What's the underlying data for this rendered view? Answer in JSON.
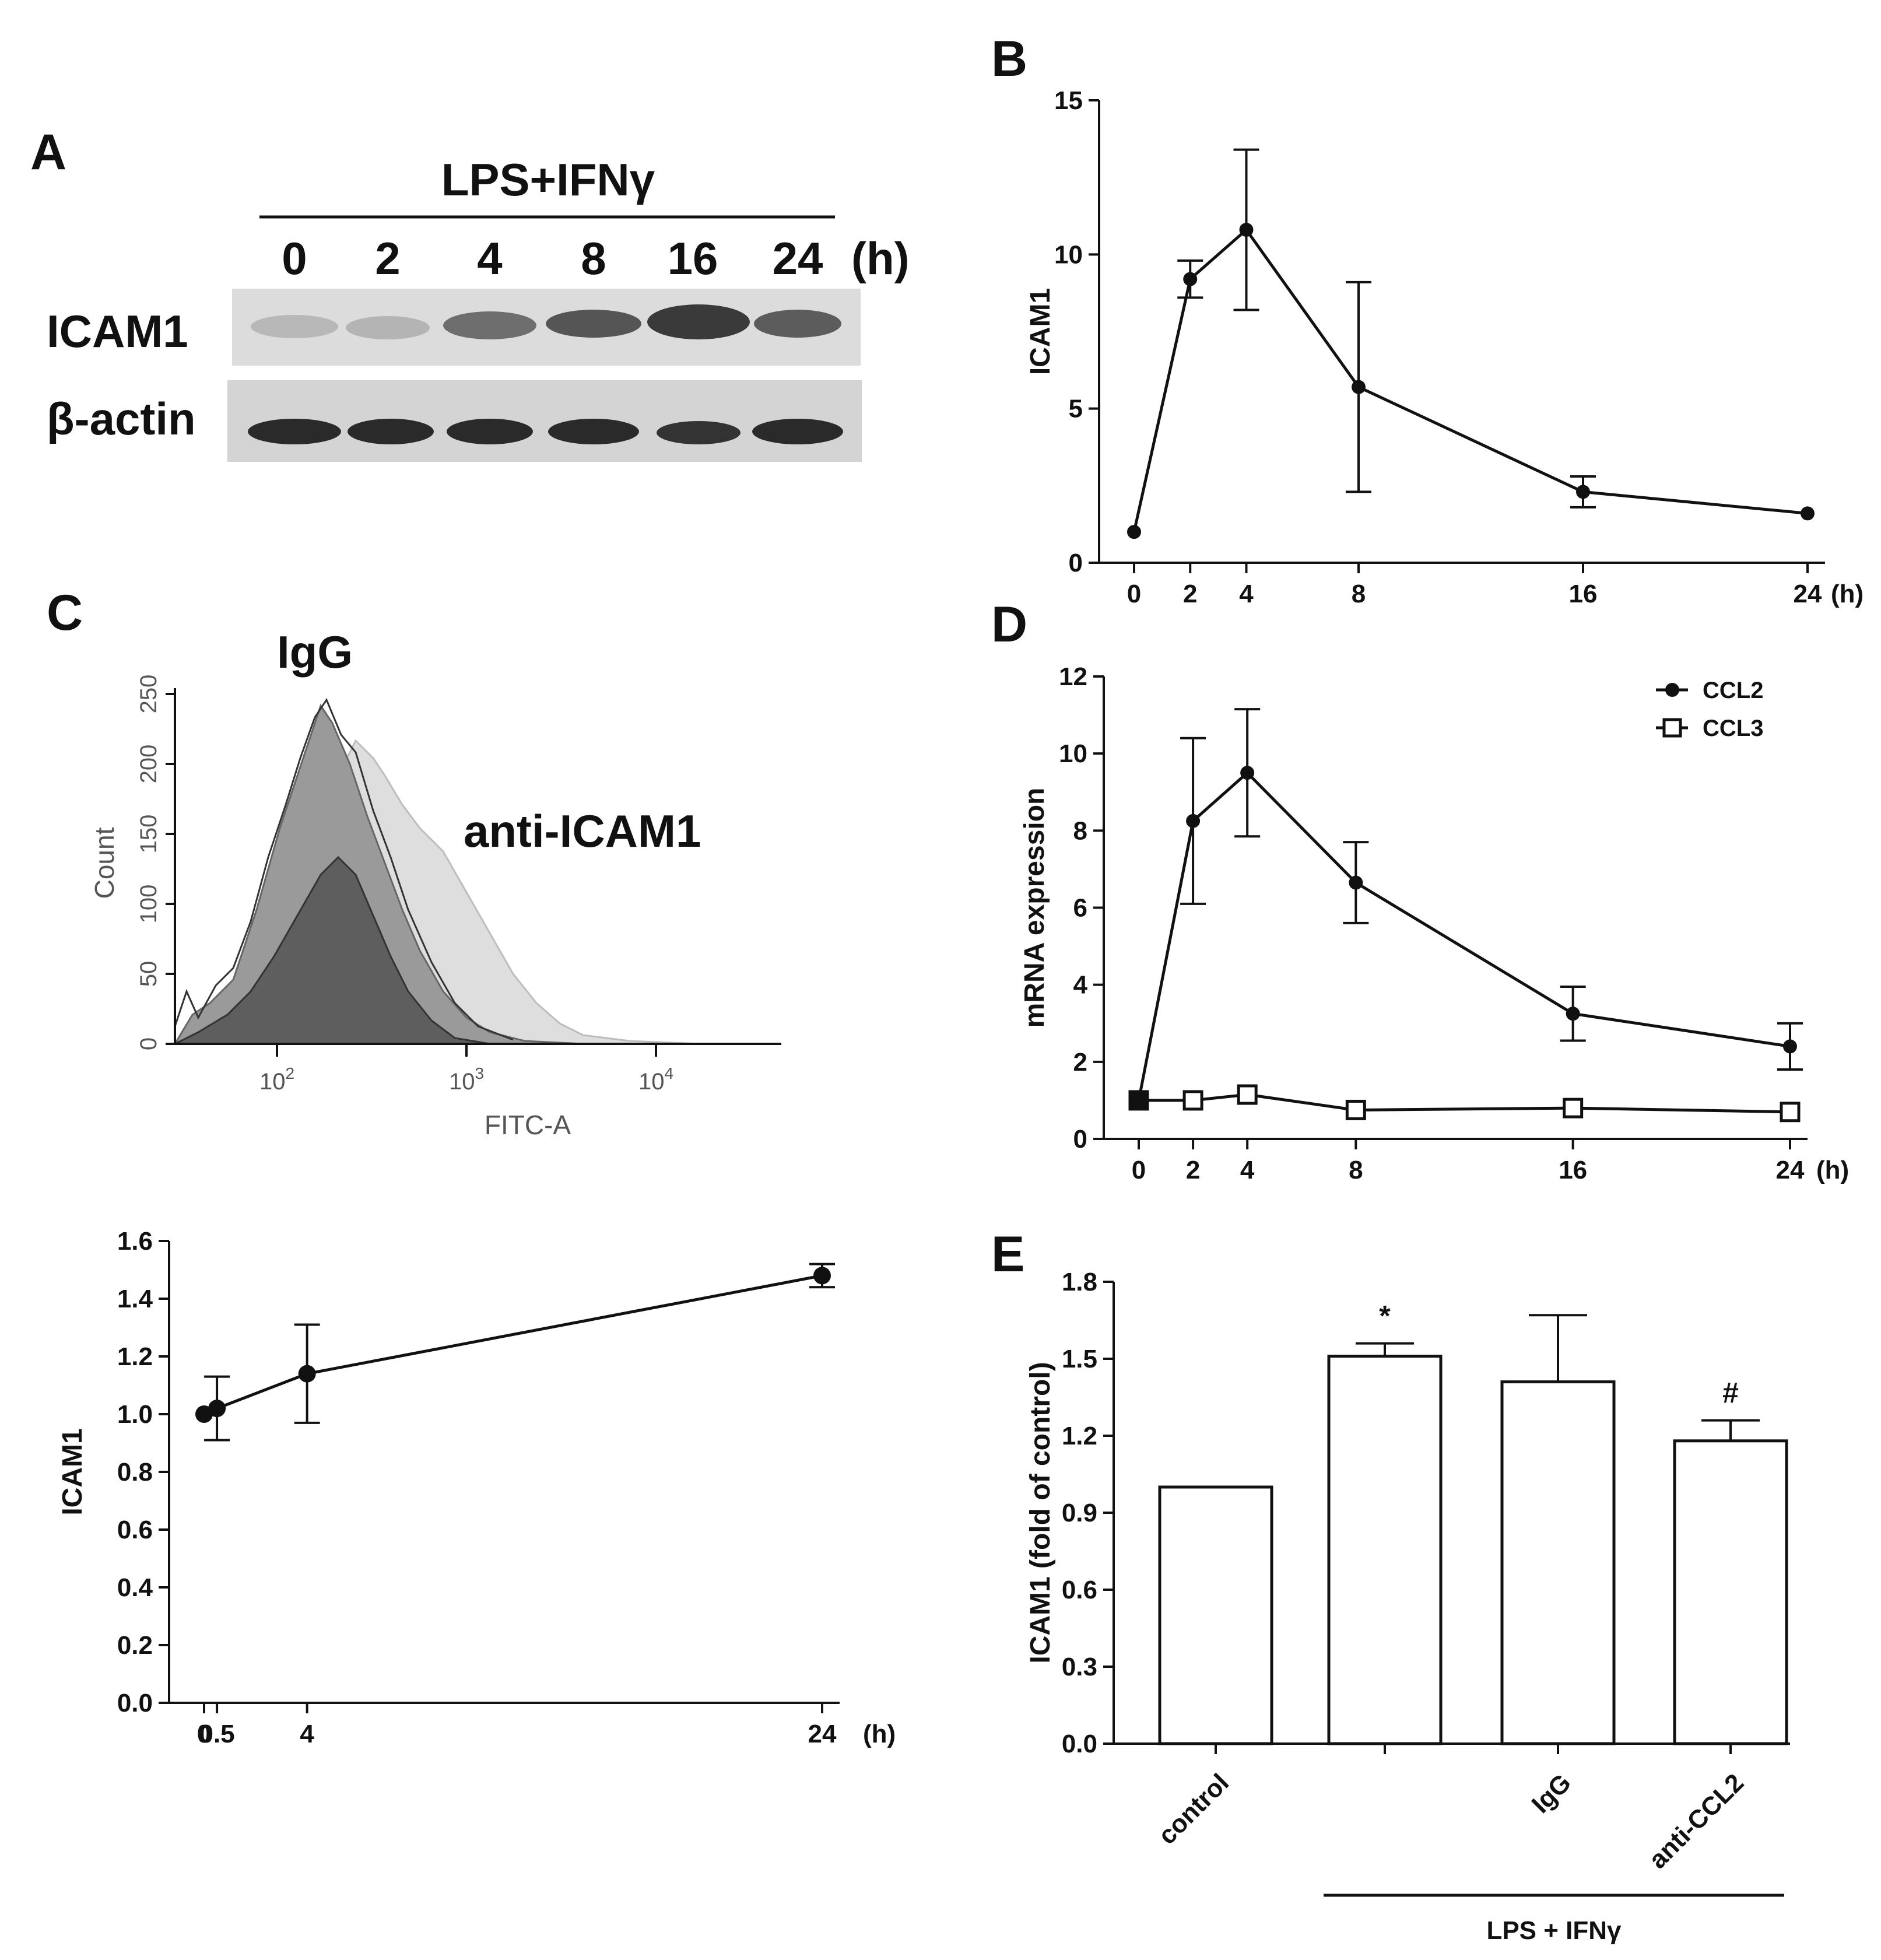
{
  "panels": {
    "A": {
      "label": "A",
      "treatment": "LPS+IFNγ",
      "time_unit": "(h)",
      "lanes": [
        "0",
        "2",
        "4",
        "8",
        "16",
        "24"
      ],
      "rows": [
        "ICAM1",
        "β-actin"
      ]
    },
    "C": {
      "label": "C",
      "histogram": {
        "label_igg": "IgG",
        "label_anti": "anti-ICAM1",
        "ylabel": "Count",
        "xlabel": "FITC-A",
        "yticks": [
          "0",
          "50",
          "100",
          "150",
          "200",
          "250"
        ]
      }
    }
  },
  "chart_data": [
    {
      "id": "B",
      "panel_label": "B",
      "type": "line",
      "ylabel": "ICAM1",
      "x_unit": "(h)",
      "ylim": [
        0,
        15
      ],
      "yticks": [
        "0",
        "5",
        "10",
        "15"
      ],
      "xticks": [
        "0",
        "2",
        "4",
        "8",
        "16",
        "24"
      ],
      "x": [
        0,
        2,
        4,
        8,
        16,
        24
      ],
      "series": [
        {
          "name": "ICAM1",
          "values": [
            1.0,
            9.2,
            10.8,
            5.7,
            2.3,
            1.6
          ],
          "err": [
            0,
            0.6,
            2.6,
            3.4,
            0.5,
            0
          ]
        }
      ]
    },
    {
      "id": "D",
      "panel_label": "D",
      "type": "line",
      "ylabel": "mRNA expression",
      "x_unit": "(h)",
      "ylim": [
        0,
        12
      ],
      "yticks": [
        "0",
        "2",
        "4",
        "6",
        "8",
        "10",
        "12"
      ],
      "xticks": [
        "0",
        "2",
        "4",
        "8",
        "16",
        "24"
      ],
      "x": [
        0,
        2,
        4,
        8,
        16,
        24
      ],
      "series": [
        {
          "name": "CCL2",
          "values": [
            1.0,
            8.25,
            9.5,
            6.65,
            3.25,
            2.4
          ],
          "err": [
            0,
            2.15,
            1.65,
            1.05,
            0.7,
            0.6
          ]
        },
        {
          "name": "CCL3",
          "values": [
            1.0,
            1.0,
            1.15,
            0.75,
            0.8,
            0.7
          ],
          "err": [
            0,
            0,
            0,
            0,
            0,
            0
          ]
        }
      ]
    },
    {
      "id": "C2",
      "type": "line",
      "ylabel": "ICAM1",
      "x_unit": "(h)",
      "ylim": [
        0,
        1.6
      ],
      "yticks": [
        "0.0",
        "0.2",
        "0.4",
        "0.6",
        "0.8",
        "1.0",
        "1.2",
        "1.4",
        "1.6"
      ],
      "xticks": [
        "0",
        "0.5",
        "4",
        "24"
      ],
      "x": [
        0,
        0.5,
        4,
        24
      ],
      "series": [
        {
          "name": "ICAM1",
          "values": [
            1.0,
            1.02,
            1.14,
            1.48
          ],
          "err": [
            0,
            0.11,
            0.17,
            0.04
          ]
        }
      ]
    },
    {
      "id": "E",
      "panel_label": "E",
      "type": "bar",
      "ylabel": "ICAM1 (fold of control)",
      "ylim": [
        0,
        1.8
      ],
      "yticks": [
        "0.0",
        "0.3",
        "0.6",
        "0.9",
        "1.2",
        "1.5",
        "1.8"
      ],
      "categories": [
        "control",
        "",
        "IgG",
        "anti-CCL2"
      ],
      "values": [
        1.0,
        1.51,
        1.41,
        1.18
      ],
      "err": [
        0,
        0.05,
        0.26,
        0.08
      ],
      "annotations": [
        "",
        "*",
        "",
        "#"
      ],
      "group_label": "LPS + IFNγ"
    }
  ]
}
